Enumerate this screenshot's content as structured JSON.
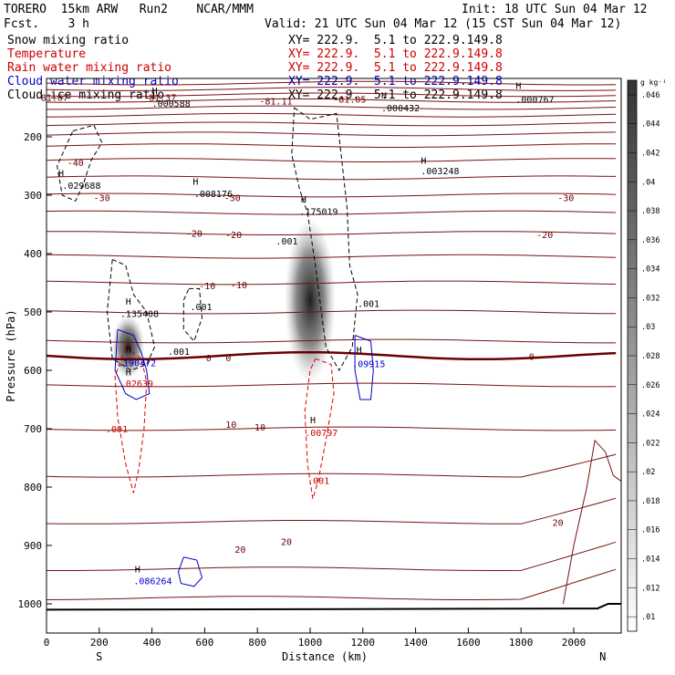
{
  "header": {
    "model_line": "TORERO  15km ARW   Run2    NCAR/MMM",
    "fcst_line": "Fcst.    3 h",
    "init_line": "Init: 18 UTC Sun 04 Mar 12",
    "valid_line": "Valid: 21 UTC Sun 04 Mar 12 (15 CST Sun 04 Mar 12)"
  },
  "fields": [
    {
      "name": "Snow mixing ratio",
      "xy": "XY= 222.9.  5.1 to 222.9.149.8",
      "color": "#000000"
    },
    {
      "name": "Temperature",
      "xy": "XY= 222.9.  5.1 to 222.9.149.8",
      "color": "#cc0000"
    },
    {
      "name": "Rain water mixing ratio",
      "xy": "XY= 222.9.  5.1 to 222.9.149.8",
      "color": "#cc0000"
    },
    {
      "name": "Cloud water mixing ratio",
      "xy": "XY= 222.9.  5.1 to 222.9.149.8",
      "color": "#0000cc"
    },
    {
      "name": "Cloud ice mixing ratio",
      "xy": "XY= 222.9.  5.1 to 222.9.149.8",
      "color": "#000000"
    }
  ],
  "colors": {
    "temperature": "#7a1010",
    "freezing_line": "#6a0000",
    "rain": "#dd0000",
    "cloud_water": "#0000cc",
    "cloud_ice": "#000000",
    "snow_shading": "#000000"
  },
  "chart_data": {
    "type": "contour",
    "xlabel": "Distance (km)",
    "ylabel": "Pressure (hPa)",
    "xlim": [
      0,
      2180
    ],
    "ylim": [
      100,
      1050
    ],
    "x_ticks": [
      0,
      200,
      400,
      600,
      800,
      1000,
      1200,
      1400,
      1600,
      1800,
      2000
    ],
    "y_ticks": [
      200,
      300,
      400,
      500,
      600,
      700,
      800,
      900,
      1000
    ],
    "x_end_labels": {
      "left": "S",
      "right": "N"
    },
    "colorbar": {
      "unit": "g kg⁻¹",
      "levels": [
        ".01",
        ".012",
        ".014",
        ".016",
        ".018",
        ".02",
        ".022",
        ".024",
        ".026",
        ".028",
        ".03",
        ".032",
        ".034",
        ".036",
        ".038",
        ".04",
        ".042",
        ".044",
        ".046"
      ]
    },
    "temperature_labels": [
      {
        "text": "-81.67",
        "x": 20,
        "p": 132
      },
      {
        "text": "-81.37",
        "x": 430,
        "p": 132
      },
      {
        "text": "-81.11",
        "x": 870,
        "p": 138
      },
      {
        "text": "-81.05",
        "x": 1150,
        "p": 135
      },
      {
        "text": "-40",
        "x": 110,
        "p": 244
      },
      {
        "text": "-30",
        "x": 210,
        "p": 304
      },
      {
        "text": "-30",
        "x": 705,
        "p": 304
      },
      {
        "text": "-30",
        "x": 1970,
        "p": 304
      },
      {
        "text": "-20",
        "x": 560,
        "p": 365
      },
      {
        "text": "-20",
        "x": 710,
        "p": 367
      },
      {
        "text": "-20",
        "x": 1890,
        "p": 367
      },
      {
        "text": "-10",
        "x": 610,
        "p": 455
      },
      {
        "text": "-10",
        "x": 730,
        "p": 453
      },
      {
        "text": "0",
        "x": 615,
        "p": 578
      },
      {
        "text": "0",
        "x": 690,
        "p": 578
      },
      {
        "text": "0",
        "x": 1840,
        "p": 576
      },
      {
        "text": "10",
        "x": 700,
        "p": 692
      },
      {
        "text": "10",
        "x": 810,
        "p": 697
      },
      {
        "text": "20",
        "x": 735,
        "p": 906
      },
      {
        "text": "20",
        "x": 910,
        "p": 893
      },
      {
        "text": "20",
        "x": 1940,
        "p": 860
      }
    ],
    "extrema_labels": [
      {
        "field": "ice",
        "text": ".000588",
        "x": 400,
        "p": 142
      },
      {
        "field": "ice",
        "text": ".000432",
        "x": 1270,
        "p": 150
      },
      {
        "field": "ice",
        "text": ".000767",
        "x": 1780,
        "p": 135
      },
      {
        "field": "ice",
        "text": ".029688",
        "x": 60,
        "p": 283
      },
      {
        "field": "ice",
        "text": ".008176",
        "x": 560,
        "p": 297
      },
      {
        "field": "ice",
        "text": ".003248",
        "x": 1420,
        "p": 258
      },
      {
        "field": "ice",
        "text": ".175019",
        "x": 960,
        "p": 327
      },
      {
        "field": "snow",
        "text": ".001",
        "x": 870,
        "p": 378
      },
      {
        "field": "snow",
        "text": ".001",
        "x": 1180,
        "p": 485
      },
      {
        "field": "snow",
        "text": ".001",
        "x": 545,
        "p": 491
      },
      {
        "field": "snow",
        "text": ".001",
        "x": 460,
        "p": 567
      },
      {
        "field": "ice",
        "text": ".135408",
        "x": 280,
        "p": 502
      },
      {
        "field": "cloud",
        "text": ".190472",
        "x": 270,
        "p": 587
      },
      {
        "field": "cloud",
        "text": ".09915",
        "x": 1160,
        "p": 588
      },
      {
        "field": "rain",
        "text": ".02639",
        "x": 280,
        "p": 622
      },
      {
        "field": "rain",
        "text": ".001",
        "x": 225,
        "p": 700
      },
      {
        "field": "rain",
        "text": ".00797",
        "x": 980,
        "p": 706
      },
      {
        "field": "rain",
        "text": ".001",
        "x": 990,
        "p": 788
      },
      {
        "field": "cloud",
        "text": ".086264",
        "x": 330,
        "p": 960
      }
    ],
    "extrema_H": [
      {
        "x": 400,
        "p": 120
      },
      {
        "x": 1270,
        "p": 128
      },
      {
        "x": 1780,
        "p": 112
      },
      {
        "x": 45,
        "p": 262
      },
      {
        "x": 555,
        "p": 276
      },
      {
        "x": 1420,
        "p": 240
      },
      {
        "x": 965,
        "p": 306
      },
      {
        "x": 300,
        "p": 481
      },
      {
        "x": 300,
        "p": 563
      },
      {
        "x": 1175,
        "p": 564
      },
      {
        "x": 300,
        "p": 602
      },
      {
        "x": 1000,
        "p": 684
      },
      {
        "x": 335,
        "p": 940
      }
    ],
    "surface_pressure": [
      [
        0,
        1010
      ],
      [
        2090,
        1008
      ],
      [
        2130,
        1000
      ],
      [
        2180,
        1000
      ]
    ]
  }
}
